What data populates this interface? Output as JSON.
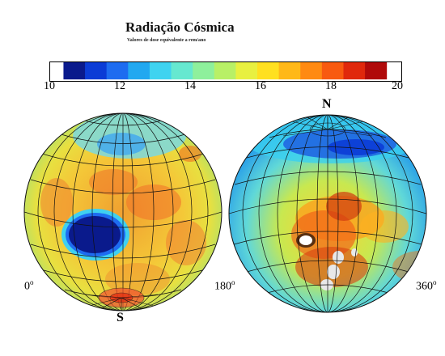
{
  "title": "Radiação Cósmica",
  "subtitle": "Valores de dose equivalente a rem/ano",
  "colorbar": {
    "ticks": [
      "10",
      "12",
      "14",
      "16",
      "18",
      "20"
    ],
    "min": 10,
    "max": 20,
    "colors": [
      "#0a1a8c",
      "#0b3cd6",
      "#1e6cf0",
      "#22a8f0",
      "#3fd3f0",
      "#66e8d0",
      "#8ef09c",
      "#b8f066",
      "#e8f040",
      "#ffe020",
      "#ffb818",
      "#ff8a12",
      "#f85a10",
      "#e0280c",
      "#b00a0a"
    ]
  },
  "labels": {
    "lon_left": "0",
    "lon_mid": "180",
    "lon_right": "360",
    "degree_sup": "o",
    "north": "N",
    "south": "S"
  }
}
